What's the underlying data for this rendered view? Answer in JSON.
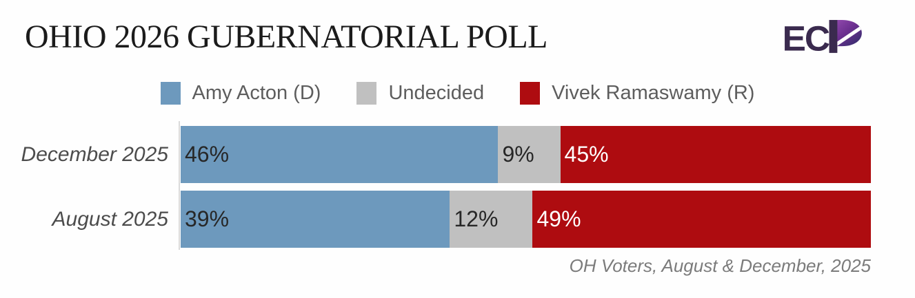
{
  "logo": {
    "letters": "EC",
    "dark": "#3a2a4e",
    "purple": "#9a4fb4",
    "mid_purple": "#6b2f8f",
    "indigo": "#2c2e67"
  },
  "chart_data": {
    "type": "bar",
    "orientation": "horizontal",
    "stacked": true,
    "title": "OHIO 2026 GUBERNATORIAL POLL",
    "caption": "OH Voters, August & December, 2025",
    "categories": [
      "December 2025",
      "August 2025"
    ],
    "series": [
      {
        "name": "Amy Acton (D)",
        "color": "#6d99bd",
        "label_color": "#272727",
        "values": [
          46,
          39
        ]
      },
      {
        "name": "Undecided",
        "color": "#c0c0c0",
        "label_color": "#272727",
        "values": [
          9,
          12
        ]
      },
      {
        "name": "Vivek Ramaswamy (R)",
        "color": "#ae0c10",
        "label_color": "#ffffff",
        "values": [
          45,
          49
        ]
      }
    ],
    "value_suffix": "%",
    "xlim": [
      0,
      100
    ],
    "grid": false,
    "legend_position": "top",
    "axis_line_color": "#dadada"
  }
}
